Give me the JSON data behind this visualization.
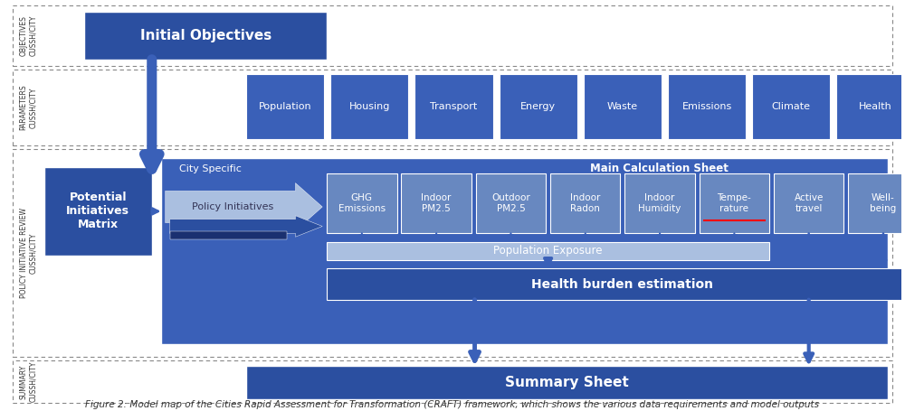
{
  "blue_dark": "#2b4fa0",
  "blue_mid": "#3a60b8",
  "blue_light": "#7a9fd4",
  "blue_lighter": "#aabfe0",
  "blue_calc": "#6888c0",
  "border_color": "#aaaaaa",
  "param_boxes": [
    "Population",
    "Housing",
    "Transport",
    "Energy",
    "Waste",
    "Emissions",
    "Climate",
    "Health"
  ],
  "calc_boxes": [
    "GHG\nEmissions",
    "Indoor\nPM2.5",
    "Outdoor\nPM2.5",
    "Indoor\nRadon",
    "Indoor\nHumidity",
    "Tempe-\nrature",
    "Active\ntravel",
    "Well-\nbeing"
  ],
  "title": "Figure 2: Model map of the Cities Rapid Assessment for Transformation (CRAFT) framework, which shows the various data requirements and model outputs"
}
